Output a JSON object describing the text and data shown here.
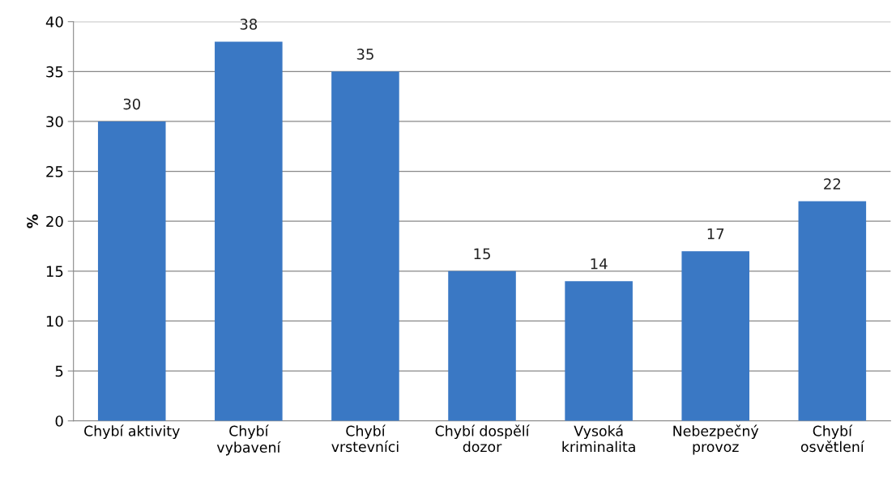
{
  "chart_data": {
    "type": "bar",
    "ylabel": "%",
    "categories": [
      "Chybí aktivity",
      "Chybí\nvybavení",
      "Chybí\nvrstevníci",
      "Chybí dospělí\ndozor",
      "Vysoká\nkriminalita",
      "Nebezpečný\nprovoz",
      "Chybí\nosvětlení"
    ],
    "values": [
      30,
      38,
      35,
      15,
      14,
      17,
      22
    ],
    "color": "#3a78c4",
    "ylim": [
      0,
      40
    ],
    "yticks": [
      0,
      5,
      10,
      15,
      20,
      25,
      30,
      35,
      40
    ],
    "grid": "y",
    "data_labels": true
  }
}
